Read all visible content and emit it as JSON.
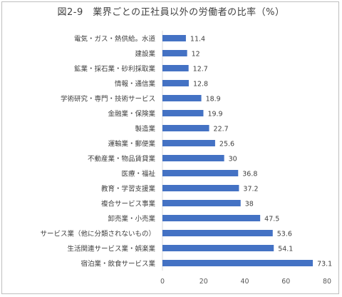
{
  "chart_data": {
    "type": "bar",
    "orientation": "horizontal",
    "title": "図2-9　業界ごとの正社員以外の労働者の比率（%）",
    "categories": [
      "電気・ガス・熱供給。水道",
      "建設業",
      "鉱業・採石業・砂利採取業",
      "情報・通信業",
      "学術研究・専門・技術サービス",
      "金融業・保険業",
      "製造業",
      "運輸業・郵便業",
      "不動産業・物品賃貸業",
      "医療・福祉",
      "教育・学習支援業",
      "複合サービス事業",
      "卸売業・小売業",
      "サービス業（他に分類されないもの）",
      "生活関連サービス業・娯楽業",
      "宿泊業・飲食サービス業"
    ],
    "values": [
      11.4,
      12,
      12.7,
      12.8,
      18.9,
      19.9,
      22.7,
      25.6,
      30,
      36.8,
      37.2,
      38,
      47.5,
      53.6,
      54.1,
      73.1
    ],
    "value_labels": [
      "11.4",
      "12",
      "12.7",
      "12.8",
      "18.9",
      "19.9",
      "22.7",
      "25.6",
      "30",
      "36.8",
      "37.2",
      "38",
      "47.5",
      "53.6",
      "54.1",
      "73.1"
    ],
    "xlim": [
      0,
      80
    ],
    "xticks": [
      "0",
      "20",
      "40",
      "60",
      "80"
    ],
    "grid": false,
    "legend": "none",
    "bar_color": "#4472c4"
  }
}
